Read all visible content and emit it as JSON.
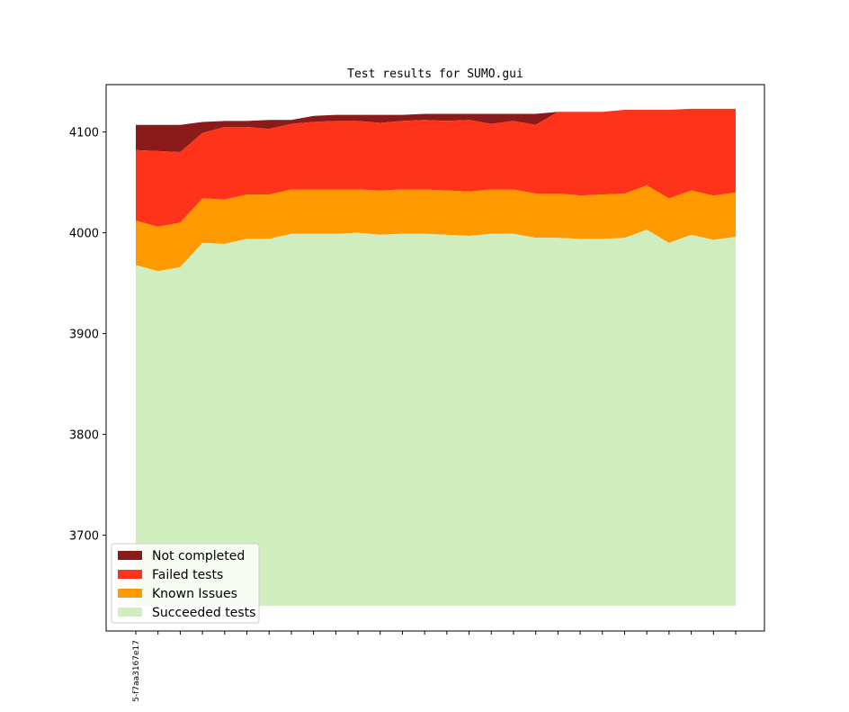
{
  "chart_data": {
    "type": "area",
    "stacked": true,
    "title": "Test results for SUMO.gui",
    "xlabel": "",
    "ylabel": "",
    "ylim": [
      3605,
      4147
    ],
    "yticks": [
      3700,
      3800,
      3900,
      4000,
      4100
    ],
    "x_tick_labels": [
      "5-f7aa3167e17",
      "",
      "",
      "",
      "",
      "",
      "",
      "",
      "",
      "",
      "",
      "",
      "",
      "",
      "",
      "",
      "",
      "",
      "",
      "",
      "",
      "",
      "",
      "",
      "",
      "",
      "",
      ""
    ],
    "baseline": 3630,
    "grid": false,
    "legend_position": "lower-left",
    "series": [
      {
        "name": "Succeeded tests",
        "color": "#d0edbf",
        "cumulative": [
          3968,
          3962,
          3966,
          3990,
          3989,
          3994,
          3994,
          3999,
          3999,
          3999,
          4000,
          3998,
          3999,
          3999,
          3998,
          3997,
          3999,
          3999,
          3995,
          3995,
          3994,
          3994,
          3995,
          4003,
          3990,
          3998,
          3993,
          3996
        ]
      },
      {
        "name": "Known Issues",
        "color": "#ff9900",
        "cumulative": [
          4012,
          4006,
          4010,
          4034,
          4033,
          4038,
          4038,
          4043,
          4043,
          4043,
          4043,
          4042,
          4043,
          4043,
          4042,
          4041,
          4043,
          4043,
          4039,
          4039,
          4037,
          4038,
          4039,
          4047,
          4034,
          4042,
          4037,
          4040
        ]
      },
      {
        "name": "Failed tests",
        "color": "#ff331a",
        "cumulative": [
          4082,
          4081,
          4080,
          4099,
          4105,
          4105,
          4103,
          4108,
          4110,
          4111,
          4111,
          4109,
          4111,
          4112,
          4111,
          4112,
          4108,
          4111,
          4107,
          4120,
          4120,
          4120,
          4122,
          4122,
          4122,
          4123,
          4123,
          4123
        ]
      },
      {
        "name": "Not completed",
        "color": "#8b1a1a",
        "cumulative": [
          4107,
          4107,
          4107,
          4110,
          4111,
          4111,
          4112,
          4112,
          4116,
          4117,
          4117,
          4117,
          4117,
          4118,
          4118,
          4118,
          4118,
          4118,
          4118,
          4120,
          4120,
          4120,
          4122,
          4122,
          4122,
          4123,
          4123,
          4123
        ]
      }
    ],
    "legend": [
      "Not completed",
      "Failed tests",
      "Known Issues",
      "Succeeded tests"
    ]
  }
}
